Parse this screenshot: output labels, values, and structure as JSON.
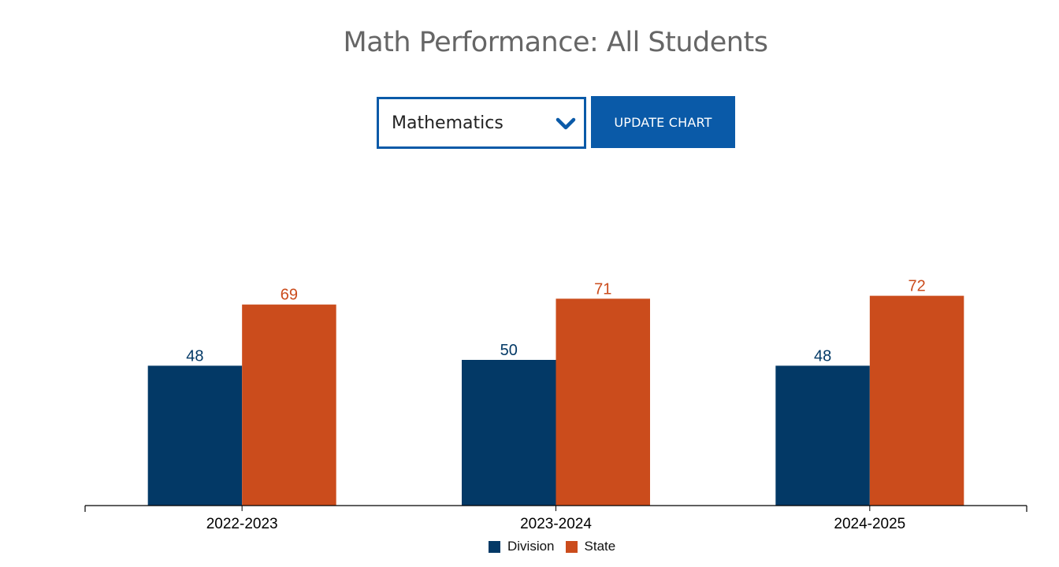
{
  "header": {
    "title": "Math Performance: All Students"
  },
  "controls": {
    "subject_select_value": "Mathematics",
    "update_button_label": "UPDATE CHART"
  },
  "colors": {
    "accent": "#0a5aa8",
    "division": "#033966",
    "state": "#cb4c1c"
  },
  "chart_data": {
    "type": "bar",
    "title": "Math Performance: All Students",
    "categories": [
      "2022-2023",
      "2023-2024",
      "2024-2025"
    ],
    "series": [
      {
        "name": "Division",
        "values": [
          48,
          50,
          48
        ],
        "color": "#033966"
      },
      {
        "name": "State",
        "values": [
          69,
          71,
          72
        ],
        "color": "#cb4c1c"
      }
    ],
    "ylim": [
      0,
      100
    ],
    "grid": false,
    "data_labels": true,
    "legend": "bottom"
  }
}
